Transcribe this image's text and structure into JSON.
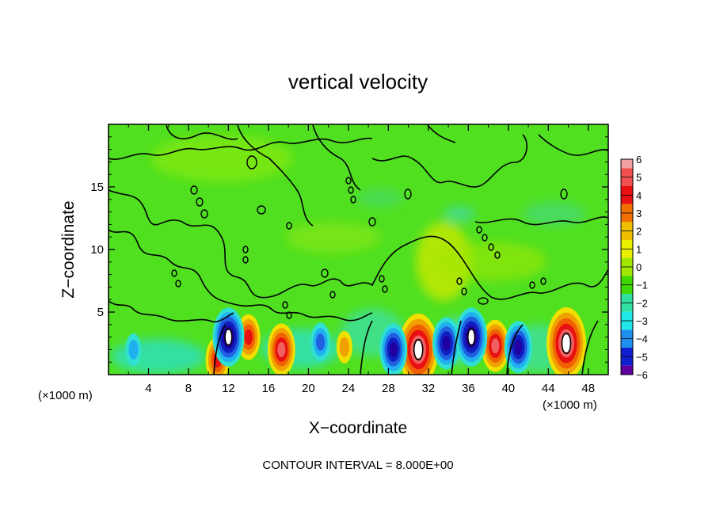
{
  "chart_data": {
    "type": "heatmap",
    "title": "vertical velocity",
    "xlabel": "X−coordinate",
    "ylabel": "Z−coordinate",
    "x_unit": "(×1000 m)",
    "x_unit_right": "(×1000 m)",
    "footer": "CONTOUR INTERVAL = 8.000E+00",
    "xlim": [
      0,
      50
    ],
    "ylim": [
      0,
      20
    ],
    "x_ticks": [
      "4",
      "8",
      "12",
      "16",
      "20",
      "24",
      "28",
      "32",
      "36",
      "40",
      "44",
      "48"
    ],
    "y_ticks": [
      "5",
      "10",
      "15"
    ],
    "colorbar": {
      "labels": [
        "6",
        "5",
        "4",
        "3",
        "2",
        "1",
        "0",
        "−1",
        "−2",
        "−3",
        "−4",
        "−5",
        "−6"
      ],
      "colors": [
        "#f2a0a0",
        "#f25050",
        "#e81010",
        "#f07000",
        "#f0c000",
        "#e8f000",
        "#a0e800",
        "#40d800",
        "#30e0a0",
        "#20e8e8",
        "#2090f0",
        "#1020d0",
        "#6000a0"
      ]
    },
    "features": [
      {
        "x": 31.0,
        "z": 2.0,
        "w": 8,
        "sign": "up"
      },
      {
        "x": 45.8,
        "z": 2.5,
        "w": 8,
        "sign": "up"
      },
      {
        "x": 17.3,
        "z": 2.0,
        "w": 5,
        "sign": "up"
      },
      {
        "x": 14.0,
        "z": 3.0,
        "w": 4,
        "sign": "up"
      },
      {
        "x": 38.7,
        "z": 2.3,
        "w": 5,
        "sign": "up"
      },
      {
        "x": 10.9,
        "z": 1.2,
        "w": 4,
        "sign": "up"
      },
      {
        "x": 23.6,
        "z": 2.2,
        "w": 2,
        "sign": "up"
      },
      {
        "x": 12.0,
        "z": 3.0,
        "w": 6,
        "sign": "down"
      },
      {
        "x": 28.5,
        "z": 2.0,
        "w": 5,
        "sign": "down"
      },
      {
        "x": 33.8,
        "z": 2.5,
        "w": 5,
        "sign": "down"
      },
      {
        "x": 36.3,
        "z": 3.0,
        "w": 6,
        "sign": "down"
      },
      {
        "x": 41.0,
        "z": 2.2,
        "w": 5,
        "sign": "down"
      },
      {
        "x": 21.2,
        "z": 2.6,
        "w": 3,
        "sign": "down"
      },
      {
        "x": 2.5,
        "z": 2.0,
        "w": 2,
        "sign": "down"
      }
    ]
  }
}
